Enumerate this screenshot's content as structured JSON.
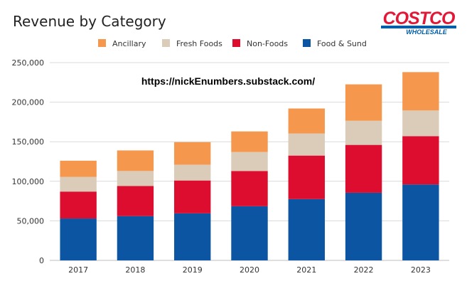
{
  "chart_data": {
    "type": "bar",
    "stacked": true,
    "title": "Revenue by Category",
    "annotation": "https://nickEnumbers.substack.com/",
    "categories": [
      "2017",
      "2018",
      "2019",
      "2020",
      "2021",
      "2022",
      "2023"
    ],
    "series": [
      {
        "name": "Food & Sund",
        "color": "#0b55a3",
        "values": [
          53000,
          56000,
          59500,
          68500,
          77500,
          85500,
          96000
        ]
      },
      {
        "name": "Non-Foods",
        "color": "#dc0d2f",
        "values": [
          34000,
          38000,
          41500,
          44500,
          55000,
          60500,
          61000
        ]
      },
      {
        "name": "Fresh Foods",
        "color": "#dbcbb9",
        "values": [
          18500,
          19000,
          20000,
          24000,
          28000,
          30500,
          32500
        ]
      },
      {
        "name": "Ancillary",
        "color": "#f5984d",
        "values": [
          20500,
          26000,
          28500,
          26000,
          31500,
          46000,
          48500
        ]
      }
    ],
    "legend_order": [
      "Ancillary",
      "Fresh Foods",
      "Non-Foods",
      "Food & Sund"
    ],
    "legend_position": "top",
    "ylim": [
      0,
      250000
    ],
    "yticks": [
      0,
      50000,
      100000,
      150000,
      200000,
      250000
    ],
    "ytick_labels": [
      "0",
      "50,000",
      "100,000",
      "150,000",
      "200,000",
      "250,000"
    ],
    "grid": true,
    "xlabel": "",
    "ylabel": ""
  },
  "logo": {
    "line1": "COSTCO",
    "line2": "WHOLESALE"
  }
}
